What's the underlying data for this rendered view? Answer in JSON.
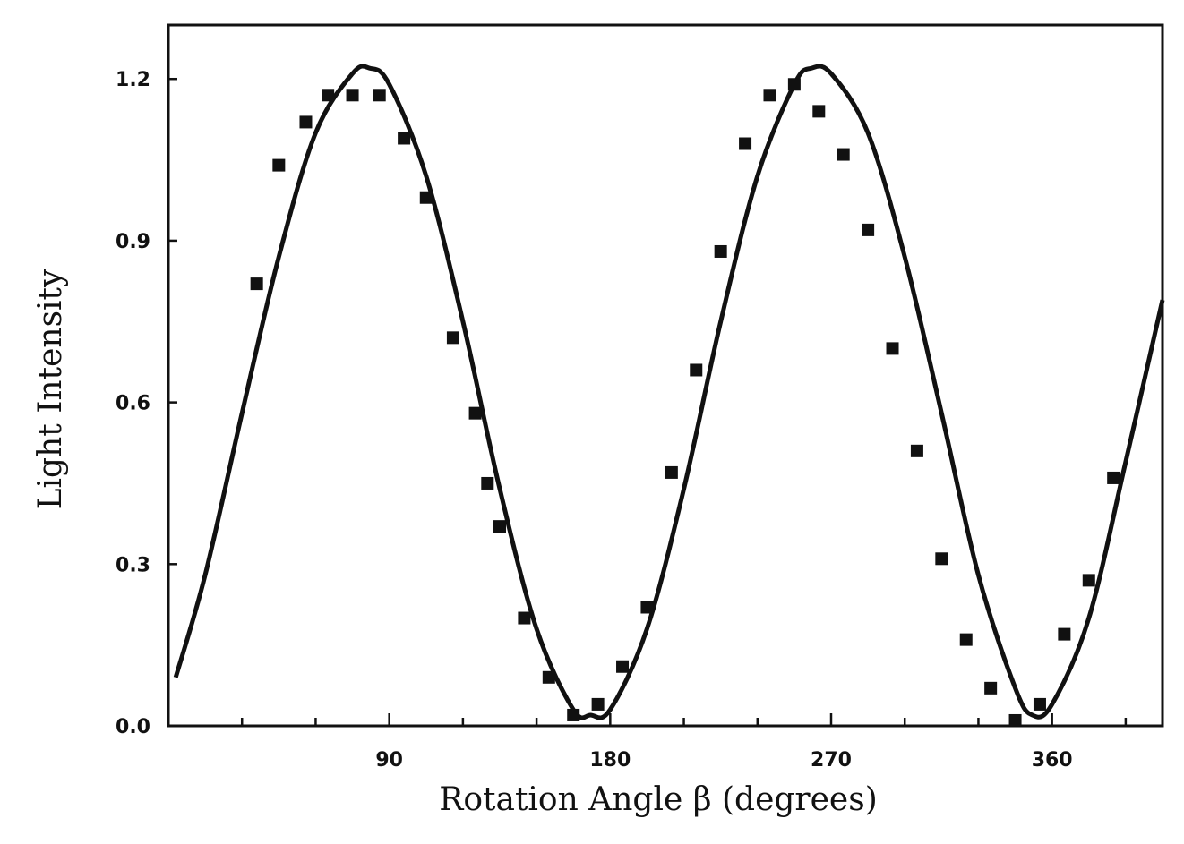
{
  "chart_data": {
    "type": "scatter",
    "xlabel": "Rotation Angle β (degrees)",
    "ylabel": "Light Intensity",
    "xlim": [
      0,
      405
    ],
    "ylim": [
      0,
      1.3
    ],
    "xticks": [
      90,
      180,
      270,
      360
    ],
    "yticks": [
      0.0,
      0.3,
      0.6,
      0.9,
      1.2
    ],
    "ytick_labels": [
      "0.0",
      "0.3",
      "0.6",
      "0.9",
      "1.2"
    ],
    "grid": false,
    "series": [
      {
        "type": "scatter",
        "marker": "square",
        "x": [
          36,
          45,
          56,
          65,
          75,
          86,
          96,
          105,
          116,
          125,
          130,
          135,
          145,
          155,
          165,
          175,
          185,
          195,
          205,
          215,
          225,
          235,
          245,
          255,
          265,
          275,
          285,
          295,
          305,
          315,
          325,
          335,
          345,
          355,
          365,
          375,
          385
        ],
        "values": [
          0.82,
          1.04,
          1.12,
          1.17,
          1.17,
          1.17,
          1.09,
          0.98,
          0.72,
          0.58,
          0.45,
          0.37,
          0.2,
          0.09,
          0.02,
          0.04,
          0.11,
          0.22,
          0.47,
          0.66,
          0.88,
          1.08,
          1.17,
          1.19,
          1.14,
          1.06,
          0.92,
          0.7,
          0.51,
          0.31,
          0.16,
          0.07,
          0.01,
          0.04,
          0.17,
          0.27,
          0.46
        ]
      },
      {
        "type": "line",
        "x": [
          3,
          15,
          30,
          45,
          60,
          75,
          82,
          90,
          105,
          120,
          135,
          150,
          165,
          172,
          180,
          195,
          210,
          225,
          240,
          255,
          262,
          270,
          285,
          300,
          315,
          330,
          345,
          352,
          360,
          375,
          390,
          405
        ],
        "values": [
          0.09,
          0.28,
          0.58,
          0.87,
          1.1,
          1.21,
          1.22,
          1.19,
          1.02,
          0.75,
          0.44,
          0.18,
          0.03,
          0.02,
          0.03,
          0.18,
          0.44,
          0.75,
          1.02,
          1.19,
          1.22,
          1.21,
          1.1,
          0.87,
          0.58,
          0.28,
          0.07,
          0.02,
          0.04,
          0.2,
          0.49,
          0.79
        ]
      }
    ]
  }
}
